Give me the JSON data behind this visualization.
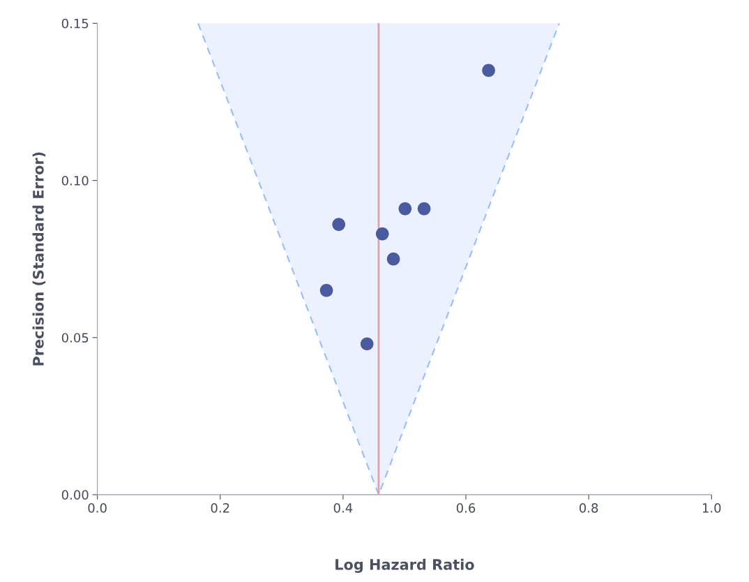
{
  "chart_data": {
    "type": "scatter",
    "xlabel": "Log Hazard Ratio",
    "ylabel": "Precision (Standard Error)",
    "xlim": [
      0,
      1
    ],
    "ylim": [
      0,
      0.15
    ],
    "xticks": [
      {
        "value": 0,
        "label": "0.0"
      },
      {
        "value": 0.2,
        "label": "0.2"
      },
      {
        "value": 0.4,
        "label": "0.4"
      },
      {
        "value": 0.6,
        "label": "0.6"
      },
      {
        "value": 0.8,
        "label": "0.8"
      },
      {
        "value": 1,
        "label": "1.0"
      }
    ],
    "yticks": [
      {
        "value": 0,
        "label": "0.00"
      },
      {
        "value": 0.05,
        "label": "0.05"
      },
      {
        "value": 0.1,
        "label": "0.10"
      },
      {
        "value": 0.15,
        "label": "0.15"
      }
    ],
    "grid": false,
    "legend": false,
    "series": [
      {
        "type": "line",
        "color": "#99bbff",
        "line_style": "dashed",
        "marker": "none",
        "x": [
          0.164,
          0.458,
          0.752
        ],
        "values": [
          0.15,
          0,
          0.15
        ],
        "lower": [
          0.15,
          0,
          0.15
        ],
        "upper": [
          0.15,
          0.15,
          0.15
        ]
      },
      {
        "color": "#4a5a9e",
        "marker": "circle",
        "x": [
          0.637,
          0.532,
          0.501,
          0.393,
          0.464,
          0.482,
          0.373,
          0.439
        ],
        "values": [
          0.135,
          0.091,
          0.091,
          0.086,
          0.083,
          0.075,
          0.065,
          0.048
        ]
      }
    ],
    "ref_lines": [
      {
        "axis": "x",
        "value": 0.458,
        "color": "#e0a0a8",
        "line_style": "solid"
      }
    ]
  }
}
